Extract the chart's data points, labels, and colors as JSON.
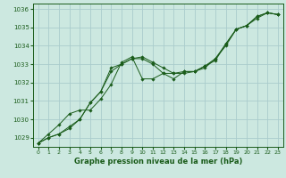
{
  "title": "Graphe pression niveau de la mer (hPa)",
  "background_color": "#cce8e0",
  "grid_color": "#aacccc",
  "line_color": "#1a5c1a",
  "marker_color": "#1a5c1a",
  "xlim": [
    -0.5,
    23.5
  ],
  "ylim": [
    1028.5,
    1036.3
  ],
  "yticks": [
    1029,
    1030,
    1031,
    1032,
    1033,
    1034,
    1035,
    1036
  ],
  "xticks": [
    0,
    1,
    2,
    3,
    4,
    5,
    6,
    7,
    8,
    9,
    10,
    11,
    12,
    13,
    14,
    15,
    16,
    17,
    18,
    19,
    20,
    21,
    22,
    23
  ],
  "series1": {
    "x": [
      0,
      1,
      2,
      3,
      4,
      5,
      6,
      7,
      8,
      9,
      10,
      11,
      12,
      13,
      14,
      15,
      16,
      17,
      18,
      19,
      20,
      21,
      22,
      23
    ],
    "y": [
      1028.7,
      1029.0,
      1029.2,
      1029.6,
      1030.0,
      1030.9,
      1031.5,
      1032.8,
      1033.0,
      1033.3,
      1033.3,
      1033.0,
      1032.5,
      1032.5,
      1032.6,
      1032.6,
      1032.9,
      1033.3,
      1034.1,
      1034.9,
      1035.1,
      1035.6,
      1035.8,
      1035.7
    ]
  },
  "series2": {
    "x": [
      0,
      1,
      2,
      3,
      4,
      5,
      6,
      7,
      8,
      9,
      10,
      11,
      12,
      13,
      14,
      15,
      16,
      17,
      18,
      19,
      20,
      21,
      22,
      23
    ],
    "y": [
      1028.7,
      1029.2,
      1029.7,
      1030.3,
      1030.5,
      1030.5,
      1031.1,
      1031.9,
      1033.1,
      1033.4,
      1032.2,
      1032.2,
      1032.5,
      1032.2,
      1032.6,
      1032.6,
      1032.9,
      1033.2,
      1034.1,
      1034.9,
      1035.1,
      1035.5,
      1035.8,
      1035.7
    ]
  },
  "series3": {
    "x": [
      0,
      1,
      2,
      3,
      4,
      5,
      6,
      7,
      8,
      9,
      10,
      11,
      12,
      13,
      14,
      15,
      16,
      17,
      18,
      19,
      20,
      21,
      22,
      23
    ],
    "y": [
      1028.7,
      1029.0,
      1029.2,
      1029.5,
      1030.0,
      1030.9,
      1031.5,
      1032.6,
      1033.0,
      1033.3,
      1033.4,
      1033.1,
      1032.8,
      1032.5,
      1032.5,
      1032.6,
      1032.8,
      1033.3,
      1034.0,
      1034.9,
      1035.1,
      1035.6,
      1035.8,
      1035.7
    ]
  }
}
